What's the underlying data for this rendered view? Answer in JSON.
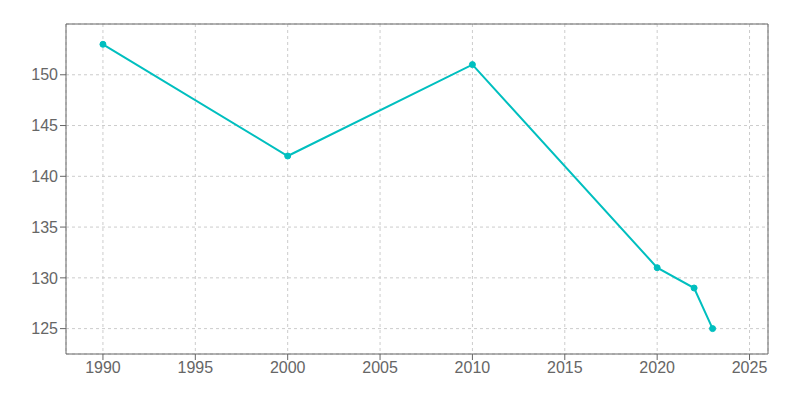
{
  "chart_data": {
    "type": "line",
    "x": [
      1990,
      2000,
      2010,
      2020,
      2022,
      2023
    ],
    "values": [
      153,
      142,
      151,
      131,
      129,
      125
    ],
    "color": "#00BFBF",
    "marker": "circle",
    "xlim": [
      1988,
      2026
    ],
    "ylim": [
      122.5,
      155
    ],
    "xticks": [
      1990,
      1995,
      2000,
      2005,
      2010,
      2015,
      2020,
      2025
    ],
    "yticks": [
      125,
      130,
      135,
      140,
      145,
      150
    ],
    "grid": true
  }
}
